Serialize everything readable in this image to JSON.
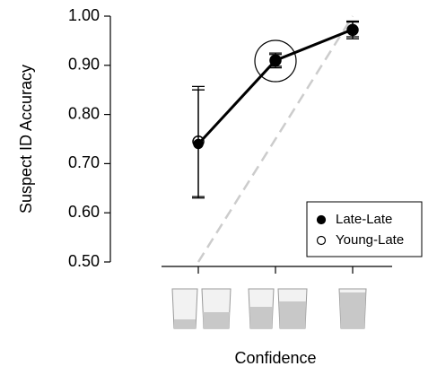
{
  "chart_data": {
    "type": "line",
    "y_label": "Suspect ID Accuracy",
    "x_label": "Confidence",
    "categories": [
      null,
      null,
      null
    ],
    "series": [
      {
        "name": "Late-Late",
        "color": "#000000",
        "marker": "filled",
        "values": [
          0.74,
          0.91,
          0.973
        ],
        "errors": [
          0.11,
          0.015,
          0.015
        ]
      },
      {
        "name": "Young-Late",
        "color": "#000000",
        "marker": "open",
        "values": [
          0.745,
          0.91,
          0.972
        ],
        "errors": [
          0.112,
          0.012,
          0.018
        ]
      }
    ],
    "reference_line": {
      "color": "#cccccc",
      "values": [
        0.5,
        1.0
      ]
    },
    "ylim": [
      0.5,
      1.0
    ],
    "yticks": [
      {
        "value": 0.5,
        "label": "0.50"
      },
      {
        "value": 0.6,
        "label": "0.60"
      },
      {
        "value": 0.7,
        "label": "0.70"
      },
      {
        "value": 0.8,
        "label": "0.80"
      },
      {
        "value": 0.9,
        "label": "0.90"
      },
      {
        "value": 1.0,
        "label": "1.00"
      }
    ],
    "legend": "bottom-right"
  }
}
